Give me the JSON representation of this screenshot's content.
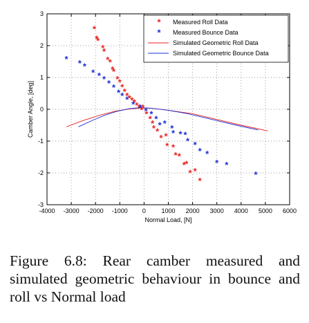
{
  "chart_data": {
    "type": "scatter",
    "xlabel": "Normal Load, [N]",
    "ylabel": "Camber Angle, [deg]",
    "xlim": [
      -4000,
      6000
    ],
    "ylim": [
      -3,
      3
    ],
    "xticks": [
      -4000,
      -3000,
      -2000,
      -1000,
      0,
      1000,
      2000,
      3000,
      4000,
      5000,
      6000
    ],
    "yticks": [
      -3,
      -2,
      -1,
      0,
      1,
      2,
      3
    ],
    "grid": "dotted",
    "legend_position": "top-right",
    "series": [
      {
        "name": "Measured Roll Data",
        "kind": "markers",
        "marker": "*",
        "color": "#e8231f",
        "points": [
          [
            -2050,
            2.52
          ],
          [
            -1950,
            2.22
          ],
          [
            -1900,
            2.15
          ],
          [
            -1700,
            1.92
          ],
          [
            -1650,
            1.82
          ],
          [
            -1500,
            1.55
          ],
          [
            -1400,
            1.48
          ],
          [
            -1300,
            1.25
          ],
          [
            -1250,
            1.18
          ],
          [
            -1100,
            0.95
          ],
          [
            -1000,
            0.85
          ],
          [
            -900,
            0.7
          ],
          [
            -800,
            0.55
          ],
          [
            -700,
            0.42
          ],
          [
            -600,
            0.35
          ],
          [
            -500,
            0.28
          ],
          [
            -400,
            0.22
          ],
          [
            -300,
            0.12
          ],
          [
            -200,
            0.05
          ],
          [
            -100,
            -0.02
          ],
          [
            -50,
            0.05
          ],
          [
            100,
            -0.15
          ],
          [
            250,
            -0.3
          ],
          [
            350,
            -0.45
          ],
          [
            400,
            -0.6
          ],
          [
            550,
            -0.7
          ],
          [
            700,
            -0.9
          ],
          [
            900,
            -0.85
          ],
          [
            950,
            -1.15
          ],
          [
            1200,
            -1.2
          ],
          [
            1300,
            -1.45
          ],
          [
            1450,
            -1.48
          ],
          [
            1650,
            -1.75
          ],
          [
            1750,
            -1.72
          ],
          [
            1900,
            -2.0
          ],
          [
            2100,
            -1.95
          ],
          [
            2300,
            -2.25
          ]
        ]
      },
      {
        "name": "Measured Bounce Data",
        "kind": "markers",
        "marker": "*",
        "color": "#1c2fd6",
        "points": [
          [
            -3200,
            1.58
          ],
          [
            -2650,
            1.45
          ],
          [
            -2450,
            1.35
          ],
          [
            -2100,
            1.15
          ],
          [
            -1850,
            1.05
          ],
          [
            -1650,
            0.95
          ],
          [
            -1450,
            0.82
          ],
          [
            -1250,
            0.68
          ],
          [
            -1050,
            0.52
          ],
          [
            -900,
            0.42
          ],
          [
            -700,
            0.3
          ],
          [
            -450,
            0.15
          ],
          [
            -150,
            0.05
          ],
          [
            80,
            -0.05
          ],
          [
            300,
            -0.15
          ],
          [
            500,
            -0.3
          ],
          [
            650,
            -0.5
          ],
          [
            850,
            -0.45
          ],
          [
            1150,
            -0.6
          ],
          [
            1200,
            -0.75
          ],
          [
            1500,
            -0.78
          ],
          [
            1700,
            -0.8
          ],
          [
            1800,
            -1.0
          ],
          [
            2100,
            -1.12
          ],
          [
            2300,
            -1.32
          ],
          [
            2600,
            -1.4
          ],
          [
            3000,
            -1.68
          ],
          [
            3400,
            -1.75
          ],
          [
            4600,
            -2.05
          ]
        ]
      },
      {
        "name": "Simulated Geometric Roll Data",
        "kind": "line",
        "color": "#e8231f",
        "points": [
          [
            -3200,
            -0.55
          ],
          [
            -2500,
            -0.35
          ],
          [
            -1800,
            -0.18
          ],
          [
            -1200,
            -0.06
          ],
          [
            -600,
            0.01
          ],
          [
            -100,
            0.04
          ],
          [
            300,
            0.03
          ],
          [
            1000,
            -0.03
          ],
          [
            2000,
            -0.14
          ],
          [
            3000,
            -0.32
          ],
          [
            4000,
            -0.5
          ],
          [
            5100,
            -0.68
          ]
        ]
      },
      {
        "name": "Simulated Geometric Bounce Data",
        "kind": "line",
        "color": "#1c2fd6",
        "points": [
          [
            -2700,
            -0.55
          ],
          [
            -2100,
            -0.34
          ],
          [
            -1600,
            -0.18
          ],
          [
            -1100,
            -0.06
          ],
          [
            -600,
            0.02
          ],
          [
            -200,
            0.05
          ],
          [
            200,
            0.04
          ],
          [
            900,
            -0.02
          ],
          [
            1800,
            -0.14
          ],
          [
            2800,
            -0.32
          ],
          [
            3800,
            -0.5
          ],
          [
            4700,
            -0.65
          ]
        ]
      }
    ]
  },
  "caption": {
    "text": "Figure 6.8: Rear camber measured and simulated geometric behaviour in bounce and roll vs Normal load"
  }
}
